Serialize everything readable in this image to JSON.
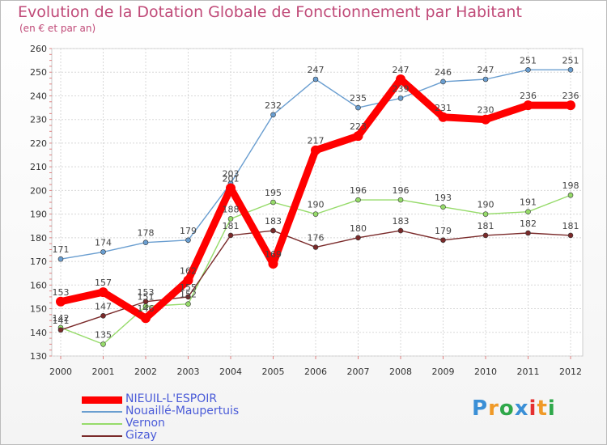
{
  "chart_data": {
    "type": "line",
    "title": "Evolution de la Dotation Globale de Fonctionnement par Habitant",
    "subtitle": "(en € et par an)",
    "x": [
      "2000",
      "2001",
      "2002",
      "2003",
      "2004",
      "2005",
      "2006",
      "2007",
      "2008",
      "2009",
      "2010",
      "2011",
      "2012"
    ],
    "ylim": [
      130,
      260
    ],
    "yticks": [
      130,
      140,
      150,
      160,
      170,
      180,
      190,
      200,
      210,
      220,
      230,
      240,
      250,
      260
    ],
    "grid": true,
    "legend_position": "bottom-left",
    "series": [
      {
        "name": "NIEUIL-L'ESPOIR",
        "color": "#ff0000",
        "values": [
          153,
          157,
          146,
          162,
          201,
          169,
          217,
          223,
          247,
          231,
          230,
          236,
          236
        ]
      },
      {
        "name": "Nouaillé-Maupertuis",
        "color": "#6a9ed0",
        "values": [
          171,
          174,
          178,
          179,
          203,
          232,
          247,
          235,
          239,
          246,
          247,
          251,
          251
        ]
      },
      {
        "name": "Vernon",
        "color": "#96db6a",
        "values": [
          142,
          135,
          151,
          152,
          188,
          195,
          190,
          196,
          196,
          193,
          190,
          191,
          198
        ]
      },
      {
        "name": "Gizay",
        "color": "#7a2a2a",
        "values": [
          141,
          147,
          153,
          155,
          181,
          183,
          176,
          180,
          183,
          179,
          181,
          182,
          181
        ]
      }
    ]
  },
  "logo": {
    "letters": [
      {
        "ch": "P",
        "color": "#3a8fd6"
      },
      {
        "ch": "r",
        "color": "#f09a28"
      },
      {
        "ch": "o",
        "color": "#2fa84a"
      },
      {
        "ch": "x",
        "color": "#3a8fd6"
      },
      {
        "ch": "i",
        "color": "#e53030"
      },
      {
        "ch": "t",
        "color": "#f09a28"
      },
      {
        "ch": "i",
        "color": "#2fa84a"
      }
    ]
  }
}
